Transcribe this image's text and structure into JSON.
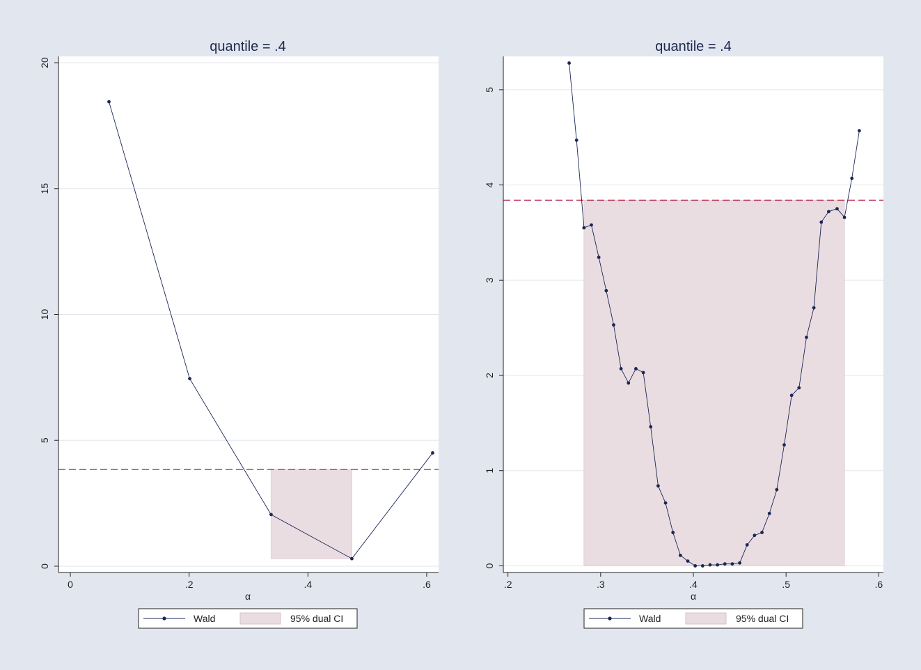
{
  "chart_data": [
    {
      "type": "line",
      "title": "quantile = .4",
      "xlabel": "α",
      "ylabel": "",
      "xlim": [
        -0.02,
        0.62
      ],
      "ylim": [
        -0.25,
        20.25
      ],
      "xticks": [
        0,
        0.2,
        0.4,
        0.6
      ],
      "xtick_labels": [
        "0",
        ".2",
        ".4",
        ".6"
      ],
      "yticks": [
        0,
        5,
        10,
        15,
        20
      ],
      "ytick_labels": [
        "0",
        "5",
        "10",
        "15",
        "20"
      ],
      "grid": "horizontal",
      "reference_line": 3.84,
      "ci_band": {
        "x0": 0.338,
        "x1": 0.474,
        "y0": 0.3,
        "y1": 3.84
      },
      "series": [
        {
          "name": "Wald",
          "x": [
            0.065,
            0.201,
            0.338,
            0.474,
            0.61
          ],
          "y": [
            18.45,
            7.45,
            2.05,
            0.3,
            4.5
          ]
        }
      ],
      "legend": [
        "Wald",
        "95% dual CI"
      ],
      "legend_position": "bottom"
    },
    {
      "type": "line",
      "title": "quantile = .4",
      "xlabel": "α",
      "ylabel": "",
      "xlim": [
        0.195,
        0.605
      ],
      "ylim": [
        -0.07,
        5.35
      ],
      "xticks": [
        0.2,
        0.3,
        0.4,
        0.5,
        0.6
      ],
      "xtick_labels": [
        ".2",
        ".3",
        ".4",
        ".5",
        ".6"
      ],
      "yticks": [
        0,
        1,
        2,
        3,
        4,
        5
      ],
      "ytick_labels": [
        "0",
        "1",
        "2",
        "3",
        "4",
        "5"
      ],
      "grid": "horizontal",
      "reference_line": 3.84,
      "ci_band": {
        "x0": 0.282,
        "x1": 0.563,
        "y0": 0,
        "y1": 3.84
      },
      "series": [
        {
          "name": "Wald",
          "x": [
            0.266,
            0.274,
            0.282,
            0.29,
            0.298,
            0.306,
            0.314,
            0.322,
            0.33,
            0.338,
            0.346,
            0.354,
            0.362,
            0.37,
            0.378,
            0.386,
            0.394,
            0.402,
            0.41,
            0.418,
            0.426,
            0.434,
            0.442,
            0.45,
            0.458,
            0.466,
            0.474,
            0.482,
            0.49,
            0.498,
            0.506,
            0.514,
            0.522,
            0.53,
            0.538,
            0.546,
            0.555,
            0.563,
            0.571,
            0.579
          ],
          "y": [
            5.28,
            4.47,
            3.55,
            3.58,
            3.24,
            2.89,
            2.53,
            2.07,
            1.92,
            2.07,
            2.03,
            1.46,
            0.84,
            0.66,
            0.35,
            0.11,
            0.05,
            0.0,
            0.0,
            0.01,
            0.01,
            0.02,
            0.02,
            0.03,
            0.22,
            0.32,
            0.35,
            0.55,
            0.8,
            1.27,
            1.79,
            1.87,
            2.4,
            2.71,
            3.61,
            3.72,
            3.75,
            3.66,
            4.07,
            4.57
          ]
        }
      ],
      "legend": [
        "Wald",
        "95% dual CI"
      ],
      "legend_position": "bottom"
    }
  ]
}
